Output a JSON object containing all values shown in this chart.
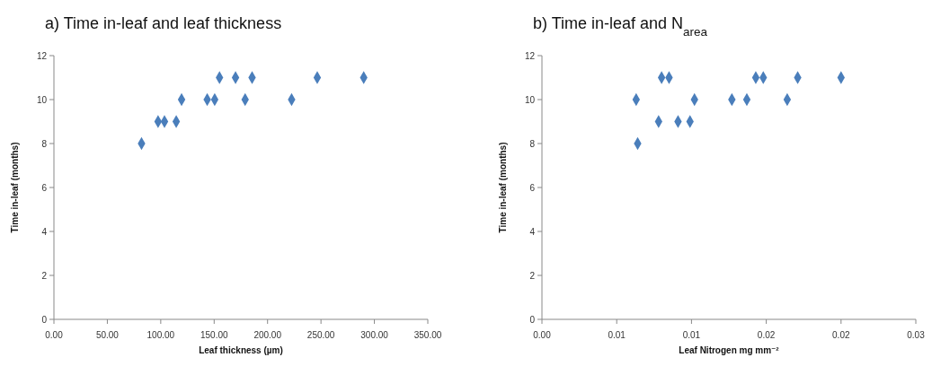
{
  "chart_data": [
    {
      "type": "scatter",
      "title": "a)  Time in-leaf and leaf thickness",
      "xlabel": "Leaf thickness (µm)",
      "ylabel": "Time in-leaf (months)",
      "marker": "diamond",
      "grid": false,
      "xlim": [
        0,
        350
      ],
      "xticks": [
        {
          "value": 0,
          "label": "0.00"
        },
        {
          "value": 50,
          "label": "50.00"
        },
        {
          "value": 100,
          "label": "100.00"
        },
        {
          "value": 150,
          "label": "150.00"
        },
        {
          "value": 200,
          "label": "200.00"
        },
        {
          "value": 250,
          "label": "250.00"
        },
        {
          "value": 300,
          "label": "300.00"
        },
        {
          "value": 350,
          "label": "350.00"
        }
      ],
      "ylim": [
        0,
        12
      ],
      "yticks": [
        0,
        2,
        4,
        6,
        8,
        10,
        12
      ],
      "series": [
        {
          "color": "#4a7ebb",
          "x": [
            82,
            97.5,
            103.5,
            114.5,
            119.5,
            143.5,
            150.5,
            155,
            170,
            179,
            185.5,
            222.5,
            246.5,
            290
          ],
          "values": [
            8,
            9,
            9,
            9,
            10,
            10,
            10,
            11,
            11,
            10,
            11,
            10,
            11,
            11
          ]
        }
      ]
    },
    {
      "type": "scatter",
      "title": "b)  Time in-leaf and N$_{area}$",
      "xlabel": "Leaf Nitrogen mg mm⁻²",
      "ylabel": "Time in-leaf (months)",
      "marker": "diamond",
      "grid": false,
      "xlim": [
        0,
        0.025
      ],
      "xticks": [
        {
          "value": 0,
          "label": "0.00"
        },
        {
          "value": 0.005,
          "label": "0.01"
        },
        {
          "value": 0.01,
          "label": "0.01"
        },
        {
          "value": 0.015,
          "label": "0.02"
        },
        {
          "value": 0.02,
          "label": "0.02"
        },
        {
          "value": 0.025,
          "label": "0.03"
        }
      ],
      "ylim": [
        0,
        12
      ],
      "yticks": [
        0,
        2,
        4,
        6,
        8,
        10,
        12
      ],
      "series": [
        {
          "color": "#4a7ebb",
          "x": [
            0.0063,
            0.0064,
            0.0078,
            0.008,
            0.0085,
            0.0091,
            0.0099,
            0.0102,
            0.0127,
            0.0137,
            0.0143,
            0.0148,
            0.0164,
            0.0171,
            0.02
          ],
          "values": [
            10,
            8,
            9,
            11,
            11,
            9,
            9,
            10,
            10,
            10,
            11,
            11,
            10,
            11,
            11
          ]
        }
      ]
    }
  ]
}
